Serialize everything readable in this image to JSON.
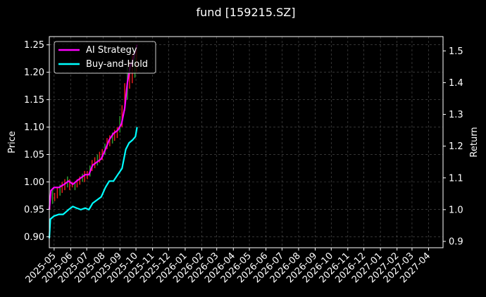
{
  "chart_data": {
    "type": "line",
    "title": "fund [159215.SZ]",
    "ylabel_left": "Price",
    "ylabel_right": "Return",
    "grid": true,
    "legend_position": "top-left",
    "x_range": [
      "2025-04-22",
      "2027-04-28"
    ],
    "x_ticks": [
      "2025-05",
      "2025-06",
      "2025-07",
      "2025-08",
      "2025-09",
      "2025-10",
      "2025-11",
      "2025-12",
      "2026-01",
      "2026-02",
      "2026-03",
      "2026-04",
      "2026-05",
      "2026-06",
      "2026-07",
      "2026-08",
      "2026-09",
      "2026-10",
      "2026-11",
      "2026-12",
      "2027-01",
      "2027-02",
      "2027-03",
      "2027-04"
    ],
    "y_left_range": [
      0.88,
      1.265
    ],
    "y_left_ticks": [
      "0.90",
      "0.95",
      "1.00",
      "1.05",
      "1.10",
      "1.15",
      "1.20",
      "1.25"
    ],
    "y_right_range": [
      0.88,
      1.545
    ],
    "y_right_ticks": [
      "0.9",
      "1.0",
      "1.1",
      "1.2",
      "1.3",
      "1.4",
      "1.5"
    ],
    "series": [
      {
        "name": "AI Strategy",
        "axis": "right",
        "color": "#ff00ff",
        "points": [
          [
            "2025-04-22",
            1.0
          ],
          [
            "2025-04-25",
            1.06
          ],
          [
            "2025-05-01",
            1.07
          ],
          [
            "2025-05-10",
            1.07
          ],
          [
            "2025-05-20",
            1.08
          ],
          [
            "2025-05-28",
            1.09
          ],
          [
            "2025-06-05",
            1.08
          ],
          [
            "2025-06-12",
            1.09
          ],
          [
            "2025-06-20",
            1.1
          ],
          [
            "2025-06-28",
            1.11
          ],
          [
            "2025-07-05",
            1.11
          ],
          [
            "2025-07-12",
            1.14
          ],
          [
            "2025-07-20",
            1.15
          ],
          [
            "2025-07-28",
            1.16
          ],
          [
            "2025-08-05",
            1.19
          ],
          [
            "2025-08-12",
            1.22
          ],
          [
            "2025-08-20",
            1.24
          ],
          [
            "2025-08-28",
            1.25
          ],
          [
            "2025-09-04",
            1.27
          ],
          [
            "2025-09-10",
            1.32
          ],
          [
            "2025-09-15",
            1.4
          ],
          [
            "2025-09-20",
            1.45
          ],
          [
            "2025-09-25",
            1.47
          ],
          [
            "2025-09-30",
            1.5
          ],
          [
            "2025-10-03",
            1.52
          ]
        ]
      },
      {
        "name": "Buy-and-Hold",
        "axis": "right",
        "color": "#00ffff",
        "points": [
          [
            "2025-04-22",
            0.91
          ],
          [
            "2025-04-24",
            0.97
          ],
          [
            "2025-05-01",
            0.98
          ],
          [
            "2025-05-10",
            0.985
          ],
          [
            "2025-05-18",
            0.985
          ],
          [
            "2025-05-28",
            1.0
          ],
          [
            "2025-06-05",
            1.01
          ],
          [
            "2025-06-12",
            1.005
          ],
          [
            "2025-06-20",
            1.0
          ],
          [
            "2025-06-28",
            1.005
          ],
          [
            "2025-07-05",
            1.0
          ],
          [
            "2025-07-12",
            1.02
          ],
          [
            "2025-07-20",
            1.03
          ],
          [
            "2025-07-28",
            1.04
          ],
          [
            "2025-08-05",
            1.07
          ],
          [
            "2025-08-12",
            1.09
          ],
          [
            "2025-08-20",
            1.09
          ],
          [
            "2025-08-28",
            1.11
          ],
          [
            "2025-09-05",
            1.13
          ],
          [
            "2025-09-12",
            1.19
          ],
          [
            "2025-09-18",
            1.21
          ],
          [
            "2025-09-25",
            1.22
          ],
          [
            "2025-09-30",
            1.23
          ],
          [
            "2025-10-03",
            1.26
          ]
        ]
      }
    ],
    "candles": [
      [
        "2025-04-23",
        0.95,
        0.975
      ],
      [
        "2025-04-28",
        0.96,
        0.985
      ],
      [
        "2025-05-02",
        0.965,
        0.98
      ],
      [
        "2025-05-07",
        0.97,
        0.99
      ],
      [
        "2025-05-12",
        0.975,
        0.995
      ],
      [
        "2025-05-16",
        0.98,
        1.0
      ],
      [
        "2025-05-21",
        0.985,
        1.005
      ],
      [
        "2025-05-26",
        0.99,
        1.01
      ],
      [
        "2025-05-30",
        0.985,
        1.005
      ],
      [
        "2025-06-04",
        0.99,
        1.0
      ],
      [
        "2025-06-09",
        0.985,
        1.0
      ],
      [
        "2025-06-13",
        0.99,
        1.005
      ],
      [
        "2025-06-18",
        0.995,
        1.01
      ],
      [
        "2025-06-23",
        1.0,
        1.015
      ],
      [
        "2025-06-27",
        1.0,
        1.02
      ],
      [
        "2025-07-02",
        1.005,
        1.02
      ],
      [
        "2025-07-07",
        1.01,
        1.03
      ],
      [
        "2025-07-11",
        1.02,
        1.04
      ],
      [
        "2025-07-16",
        1.025,
        1.045
      ],
      [
        "2025-07-21",
        1.03,
        1.05
      ],
      [
        "2025-07-25",
        1.035,
        1.055
      ],
      [
        "2025-07-30",
        1.04,
        1.06
      ],
      [
        "2025-08-04",
        1.05,
        1.07
      ],
      [
        "2025-08-08",
        1.06,
        1.08
      ],
      [
        "2025-08-13",
        1.065,
        1.085
      ],
      [
        "2025-08-18",
        1.07,
        1.09
      ],
      [
        "2025-08-22",
        1.075,
        1.095
      ],
      [
        "2025-08-27",
        1.08,
        1.1
      ],
      [
        "2025-09-01",
        1.09,
        1.12
      ],
      [
        "2025-09-05",
        1.1,
        1.14
      ],
      [
        "2025-09-10",
        1.13,
        1.18
      ],
      [
        "2025-09-15",
        1.15,
        1.21
      ],
      [
        "2025-09-19",
        1.17,
        1.22
      ],
      [
        "2025-09-24",
        1.18,
        1.235
      ],
      [
        "2025-09-29",
        1.19,
        1.245
      ],
      [
        "2025-10-02",
        1.2,
        1.25
      ]
    ],
    "candle_colors": {
      "up": "#e81d1d",
      "down": "#2f9c2f"
    }
  }
}
